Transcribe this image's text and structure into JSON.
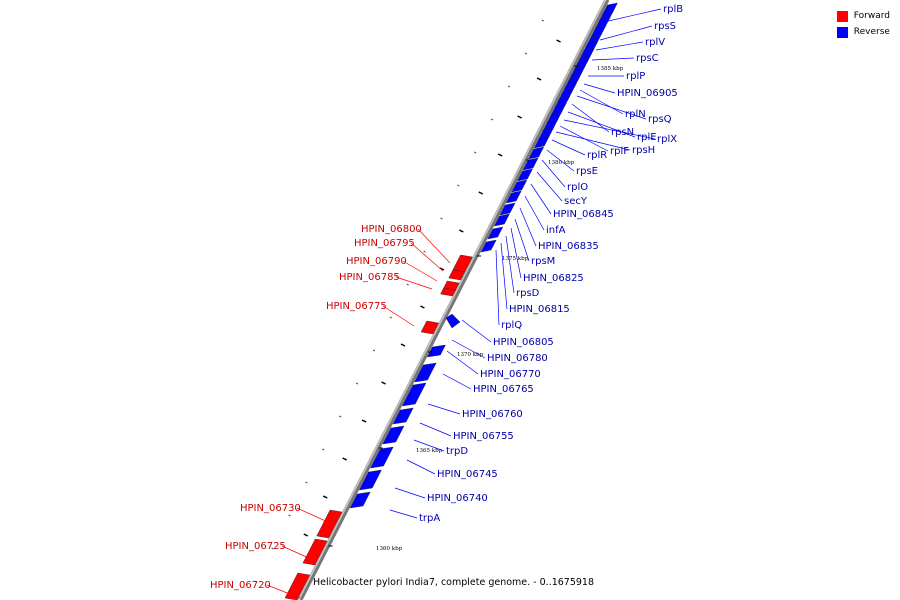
{
  "caption": "Helicobacter pylori India7, complete genome. - 0..1675918",
  "legend": [
    {
      "label": "Forward",
      "color": "#ff0000"
    },
    {
      "label": "Reverse",
      "color": "#0000ff"
    }
  ],
  "colors": {
    "forward": "#ff0000",
    "reverse": "#0000ff",
    "backbone": "#777777"
  },
  "ticks": [
    "1385 kbp",
    "1380 kbp",
    "1375 kbp",
    "1370 kbp",
    "1365 kbp",
    "1360 kbp"
  ],
  "forward_genes": [
    "HPIN_06800",
    "HPIN_06795",
    "HPIN_06790",
    "HPIN_06785",
    "HPIN_06775",
    "HPIN_06730",
    "HPIN_06725",
    "HPIN_06720"
  ],
  "reverse_genes": [
    "rplB",
    "rpsS",
    "rplV",
    "rpsC",
    "rplP",
    "HPIN_06905",
    "rplN",
    "rpsQ",
    "rpsN",
    "rplE",
    "rplX",
    "rplF",
    "rpsH",
    "rplR",
    "rpsE",
    "rplO",
    "secY",
    "HPIN_06845",
    "infA",
    "HPIN_06835",
    "rpsM",
    "HPIN_06825",
    "rpsD",
    "HPIN_06815",
    "rplQ",
    "HPIN_06805",
    "HPIN_06780",
    "HPIN_06770",
    "HPIN_06765",
    "HPIN_06760",
    "HPIN_06755",
    "trpD",
    "HPIN_06745",
    "HPIN_06740",
    "trpA"
  ]
}
